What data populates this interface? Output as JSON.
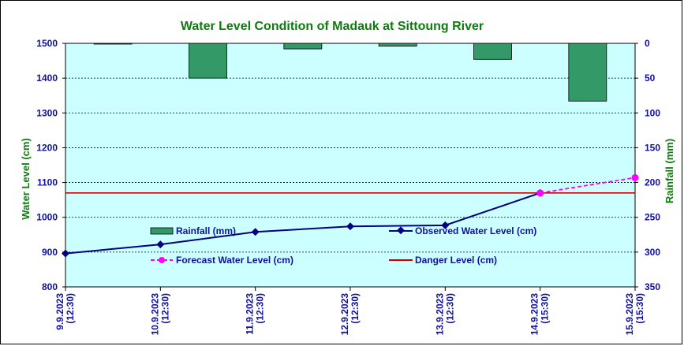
{
  "chart_data": {
    "type": "bar+line",
    "title": "Water Level Condition of Madauk at Sittoung River",
    "y_left_label": "Water Level (cm)",
    "y_right_label": "Rainfall (mm)",
    "y_left_range": [
      800,
      1500
    ],
    "y_right_range": [
      0,
      350
    ],
    "y_left_ticks": [
      "1500",
      "1400",
      "1300",
      "1200",
      "1100",
      "1000",
      "900",
      "800"
    ],
    "y_right_ticks": [
      "0",
      "50",
      "100",
      "150",
      "200",
      "250",
      "300",
      "350"
    ],
    "grid": true,
    "background_color": "#ccffff",
    "categories": [
      [
        "9.9.2023",
        "(12:30)"
      ],
      [
        "10.9.2023",
        "(12:30)"
      ],
      [
        "11.9.2023",
        "(12:30)"
      ],
      [
        "12.9.2023",
        "(12:30)"
      ],
      [
        "13.9.2023",
        "(12:30)"
      ],
      [
        "14.9.2023",
        "(15:30)"
      ],
      [
        "15.9.2023",
        "(15:30)"
      ]
    ],
    "rainfall": {
      "name": "Rainfall (mm)",
      "color": "#339966",
      "values": [
        0.5,
        50,
        8,
        4,
        23,
        83,
        null
      ]
    },
    "observed": {
      "name": "Observed Water Level (cm)",
      "color": "#000080",
      "values": [
        896,
        922,
        958,
        974,
        977,
        1070,
        null
      ]
    },
    "forecast": {
      "name": "Forecast Water Level (cm)",
      "color": "#ff00ff",
      "values": [
        null,
        null,
        null,
        null,
        null,
        1070,
        1114
      ]
    },
    "danger": {
      "name": "Danger Level (cm)",
      "color": "#cc0000",
      "value": 1070
    }
  }
}
